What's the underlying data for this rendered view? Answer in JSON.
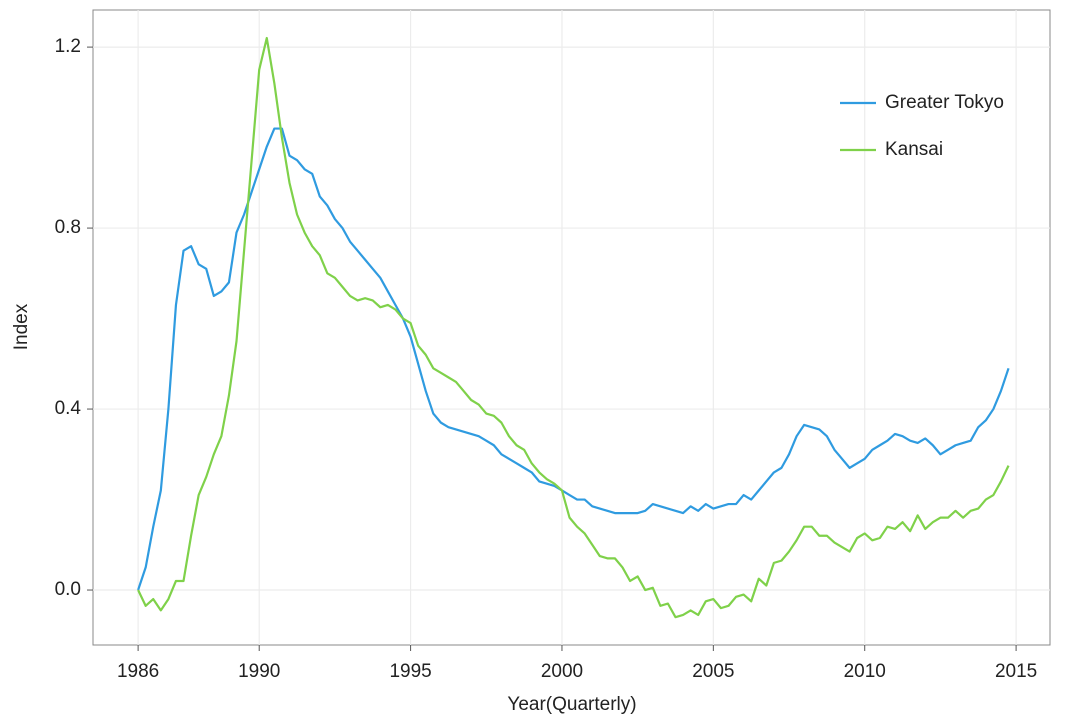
{
  "chart_data": {
    "type": "line",
    "x_label": "Year(Quarterly)",
    "y_label": "Index",
    "x": [
      1986,
      1986.25,
      1986.5,
      1986.75,
      1987,
      1987.25,
      1987.5,
      1987.75,
      1988,
      1988.25,
      1988.5,
      1988.75,
      1989,
      1989.25,
      1989.5,
      1989.75,
      1990,
      1990.25,
      1990.5,
      1990.75,
      1991,
      1991.25,
      1991.5,
      1991.75,
      1992,
      1992.25,
      1992.5,
      1992.75,
      1993,
      1993.25,
      1993.5,
      1993.75,
      1994,
      1994.25,
      1994.5,
      1994.75,
      1995,
      1995.25,
      1995.5,
      1995.75,
      1996,
      1996.25,
      1996.5,
      1996.75,
      1997,
      1997.25,
      1997.5,
      1997.75,
      1998,
      1998.25,
      1998.5,
      1998.75,
      1999,
      1999.25,
      1999.5,
      1999.75,
      2000,
      2000.25,
      2000.5,
      2000.75,
      2001,
      2001.25,
      2001.5,
      2001.75,
      2002,
      2002.25,
      2002.5,
      2002.75,
      2003,
      2003.25,
      2003.5,
      2003.75,
      2004,
      2004.25,
      2004.5,
      2004.75,
      2005,
      2005.25,
      2005.5,
      2005.75,
      2006,
      2006.25,
      2006.5,
      2006.75,
      2007,
      2007.25,
      2007.5,
      2007.75,
      2008,
      2008.25,
      2008.5,
      2008.75,
      2009,
      2009.25,
      2009.5,
      2009.75,
      2010,
      2010.25,
      2010.5,
      2010.75,
      2011,
      2011.25,
      2011.5,
      2011.75,
      2012,
      2012.25,
      2012.5,
      2012.75,
      2013,
      2013.25,
      2013.5,
      2013.75,
      2014,
      2014.25,
      2014.5,
      2014.75
    ],
    "series": [
      {
        "name": "Greater Tokyo",
        "color": "#2f9be0",
        "values": [
          0,
          0.05,
          0.14,
          0.22,
          0.4,
          0.63,
          0.75,
          0.76,
          0.72,
          0.71,
          0.65,
          0.66,
          0.68,
          0.79,
          0.83,
          0.88,
          0.93,
          0.98,
          1.02,
          1.02,
          0.96,
          0.95,
          0.93,
          0.92,
          0.87,
          0.85,
          0.82,
          0.8,
          0.77,
          0.75,
          0.73,
          0.71,
          0.69,
          0.66,
          0.63,
          0.6,
          0.56,
          0.5,
          0.44,
          0.39,
          0.37,
          0.36,
          0.355,
          0.35,
          0.345,
          0.34,
          0.33,
          0.32,
          0.3,
          0.29,
          0.28,
          0.27,
          0.26,
          0.24,
          0.235,
          0.23,
          0.22,
          0.21,
          0.2,
          0.2,
          0.185,
          0.18,
          0.175,
          0.17,
          0.17,
          0.17,
          0.17,
          0.175,
          0.19,
          0.185,
          0.18,
          0.175,
          0.17,
          0.185,
          0.175,
          0.19,
          0.18,
          0.185,
          0.19,
          0.19,
          0.21,
          0.2,
          0.22,
          0.24,
          0.26,
          0.27,
          0.3,
          0.34,
          0.365,
          0.36,
          0.355,
          0.34,
          0.31,
          0.29,
          0.27,
          0.28,
          0.29,
          0.31,
          0.32,
          0.33,
          0.345,
          0.34,
          0.33,
          0.325,
          0.335,
          0.32,
          0.3,
          0.31,
          0.32,
          0.325,
          0.33,
          0.36,
          0.375,
          0.4,
          0.44,
          0.49
        ]
      },
      {
        "name": "Kansai",
        "color": "#7fd14a",
        "values": [
          0,
          -0.035,
          -0.02,
          -0.045,
          -0.02,
          0.02,
          0.02,
          0.12,
          0.21,
          0.25,
          0.3,
          0.34,
          0.43,
          0.55,
          0.75,
          0.95,
          1.15,
          1.22,
          1.12,
          1.0,
          0.9,
          0.83,
          0.79,
          0.76,
          0.74,
          0.7,
          0.69,
          0.67,
          0.65,
          0.64,
          0.645,
          0.64,
          0.625,
          0.63,
          0.62,
          0.6,
          0.59,
          0.54,
          0.52,
          0.49,
          0.48,
          0.47,
          0.46,
          0.44,
          0.42,
          0.41,
          0.39,
          0.385,
          0.37,
          0.34,
          0.32,
          0.31,
          0.28,
          0.26,
          0.245,
          0.235,
          0.22,
          0.16,
          0.14,
          0.125,
          0.1,
          0.075,
          0.07,
          0.07,
          0.05,
          0.02,
          0.03,
          0,
          0.005,
          -0.035,
          -0.03,
          -0.06,
          -0.055,
          -0.045,
          -0.055,
          -0.025,
          -0.02,
          -0.04,
          -0.035,
          -0.015,
          -0.01,
          -0.025,
          0.025,
          0.01,
          0.06,
          0.065,
          0.085,
          0.11,
          0.14,
          0.14,
          0.12,
          0.12,
          0.105,
          0.095,
          0.085,
          0.115,
          0.125,
          0.11,
          0.115,
          0.14,
          0.135,
          0.15,
          0.13,
          0.165,
          0.135,
          0.15,
          0.16,
          0.16,
          0.175,
          0.16,
          0.175,
          0.18,
          0.2,
          0.21,
          0.24,
          0.275
        ]
      }
    ],
    "xlim": [
      1984.51,
      2016.12
    ],
    "xticks": [
      1986,
      1990,
      1995,
      2000,
      2005,
      2010,
      2015
    ],
    "ylim": [
      -0.1215,
      1.282
    ],
    "yticks": [
      {
        "value": 0,
        "label": "0.0"
      },
      0.4,
      0.8,
      1.2
    ],
    "grid": true,
    "legend_position": "top-right"
  }
}
